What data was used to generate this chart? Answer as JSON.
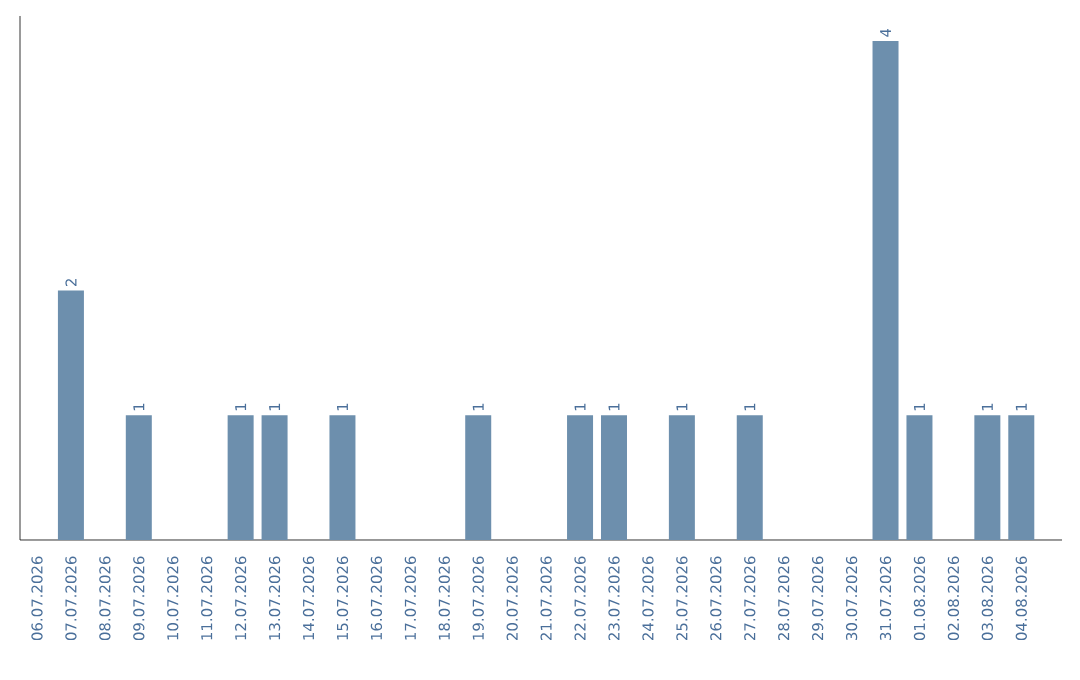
{
  "chart_data": {
    "type": "bar",
    "categories": [
      "06.07.2026",
      "07.07.2026",
      "08.07.2026",
      "09.07.2026",
      "10.07.2026",
      "11.07.2026",
      "12.07.2026",
      "13.07.2026",
      "14.07.2026",
      "15.07.2026",
      "16.07.2026",
      "17.07.2026",
      "18.07.2026",
      "19.07.2026",
      "20.07.2026",
      "21.07.2026",
      "22.07.2026",
      "23.07.2026",
      "24.07.2026",
      "25.07.2026",
      "26.07.2026",
      "27.07.2026",
      "28.07.2026",
      "29.07.2026",
      "30.07.2026",
      "31.07.2026",
      "01.08.2026",
      "02.08.2026",
      "03.08.2026",
      "04.08.2026"
    ],
    "values": [
      0,
      2,
      0,
      1,
      0,
      0,
      1,
      1,
      0,
      1,
      0,
      0,
      0,
      1,
      0,
      0,
      1,
      1,
      0,
      1,
      0,
      1,
      0,
      0,
      0,
      4,
      1,
      0,
      1,
      1
    ],
    "value_labels": [
      null,
      "2",
      null,
      "1",
      null,
      null,
      "1",
      "1",
      null,
      "1",
      null,
      null,
      null,
      "1",
      null,
      null,
      "1",
      "1",
      null,
      "1",
      null,
      "1",
      null,
      null,
      null,
      "4",
      "1",
      null,
      "1",
      "1"
    ],
    "color": "#6d8fad",
    "ylim": [
      0,
      4.2
    ],
    "tick_labels": "x",
    "grid": false
  }
}
